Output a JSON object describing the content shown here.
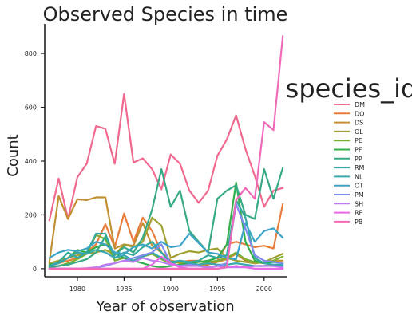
{
  "chart_data": {
    "type": "line",
    "title": "Observed Species in time",
    "xlabel": "Year of observation",
    "ylabel": "Count",
    "xlim": [
      1976.5,
      2002.5
    ],
    "ylim": [
      -30,
      910
    ],
    "xticks": [
      1980,
      1985,
      1990,
      1995,
      2000
    ],
    "yticks": [
      0,
      200,
      400,
      600,
      800
    ],
    "grid": false,
    "legend": {
      "title": "species_id",
      "position": "right"
    },
    "x": [
      1977,
      1978,
      1979,
      1980,
      1981,
      1982,
      1983,
      1984,
      1985,
      1986,
      1987,
      1988,
      1989,
      1990,
      1991,
      1992,
      1993,
      1994,
      1995,
      1996,
      1997,
      1998,
      1999,
      2000,
      2001,
      2002
    ],
    "series": [
      {
        "name": "DM",
        "color": "#f0698f",
        "values": [
          180,
          335,
          185,
          340,
          390,
          530,
          520,
          390,
          650,
          395,
          410,
          370,
          295,
          425,
          390,
          290,
          245,
          290,
          420,
          480,
          570,
          445,
          345,
          230,
          290,
          300
        ]
      },
      {
        "name": "DO",
        "color": "#ea7c3b",
        "values": [
          10,
          20,
          30,
          40,
          60,
          90,
          165,
          80,
          205,
          100,
          190,
          140,
          60,
          30,
          25,
          30,
          30,
          20,
          30,
          90,
          100,
          90,
          80,
          85,
          75,
          240
        ]
      },
      {
        "name": "DS",
        "color": "#c18f31",
        "values": [
          25,
          270,
          185,
          258,
          255,
          265,
          265,
          75,
          90,
          85,
          170,
          85,
          60,
          30,
          20,
          15,
          10,
          15,
          25,
          35,
          55,
          30,
          20,
          25,
          30,
          30
        ]
      },
      {
        "name": "OL",
        "color": "#a0a031",
        "values": [
          20,
          30,
          40,
          50,
          55,
          60,
          70,
          50,
          90,
          80,
          100,
          190,
          160,
          40,
          55,
          65,
          60,
          70,
          75,
          40,
          30,
          25,
          20,
          25,
          40,
          55
        ]
      },
      {
        "name": "PE",
        "color": "#7aaf32",
        "values": [
          5,
          10,
          20,
          35,
          55,
          125,
          110,
          30,
          40,
          30,
          45,
          55,
          35,
          20,
          25,
          20,
          15,
          25,
          30,
          40,
          60,
          35,
          25,
          20,
          30,
          45
        ]
      },
      {
        "name": "PF",
        "color": "#33b04a",
        "values": [
          15,
          20,
          40,
          70,
          60,
          80,
          90,
          60,
          40,
          30,
          20,
          10,
          5,
          10,
          15,
          20,
          25,
          30,
          40,
          90,
          320,
          100,
          30,
          20,
          25,
          20
        ]
      },
      {
        "name": "PP",
        "color": "#35aa85",
        "values": [
          5,
          10,
          15,
          25,
          35,
          60,
          120,
          50,
          80,
          60,
          115,
          220,
          370,
          230,
          290,
          140,
          100,
          60,
          260,
          290,
          310,
          200,
          185,
          370,
          260,
          375
        ]
      },
      {
        "name": "RM",
        "color": "#34a99d",
        "values": [
          10,
          25,
          60,
          40,
          60,
          130,
          130,
          40,
          60,
          50,
          80,
          100,
          60,
          20,
          30,
          25,
          30,
          50,
          40,
          50,
          255,
          190,
          40,
          20,
          15,
          10
        ]
      },
      {
        "name": "NL",
        "color": "#37a6ad",
        "values": [
          10,
          20,
          40,
          60,
          55,
          70,
          60,
          40,
          50,
          30,
          45,
          60,
          40,
          25,
          30,
          20,
          15,
          20,
          15,
          15,
          20,
          15,
          10,
          10,
          15,
          15
        ]
      },
      {
        "name": "OT",
        "color": "#3ba3c5",
        "values": [
          40,
          60,
          70,
          65,
          75,
          100,
          90,
          60,
          55,
          80,
          90,
          75,
          100,
          80,
          85,
          130,
          95,
          60,
          55,
          40,
          35,
          170,
          100,
          140,
          150,
          115
        ]
      },
      {
        "name": "PM",
        "color": "#7f8cee",
        "values": [
          0,
          0,
          0,
          0,
          0,
          5,
          10,
          20,
          30,
          40,
          50,
          60,
          90,
          20,
          10,
          15,
          10,
          5,
          10,
          20,
          240,
          150,
          50,
          30,
          25,
          20
        ]
      },
      {
        "name": "SH",
        "color": "#bb7ef0",
        "values": [
          0,
          0,
          0,
          0,
          2,
          5,
          15,
          20,
          30,
          25,
          40,
          30,
          25,
          15,
          10,
          10,
          10,
          5,
          10,
          5,
          5,
          5,
          10,
          10,
          10,
          5
        ]
      },
      {
        "name": "RF",
        "color": "#e767e4",
        "values": [
          0,
          0,
          0,
          0,
          0,
          0,
          0,
          0,
          0,
          0,
          0,
          15,
          45,
          20,
          5,
          0,
          0,
          0,
          0,
          5,
          10,
          5,
          0,
          0,
          0,
          0
        ]
      },
      {
        "name": "PB",
        "color": "#f06ab7",
        "values": [
          0,
          0,
          0,
          0,
          0,
          0,
          0,
          0,
          0,
          0,
          0,
          0,
          0,
          0,
          0,
          0,
          0,
          0,
          0,
          5,
          255,
          300,
          260,
          545,
          515,
          865
        ]
      }
    ]
  }
}
